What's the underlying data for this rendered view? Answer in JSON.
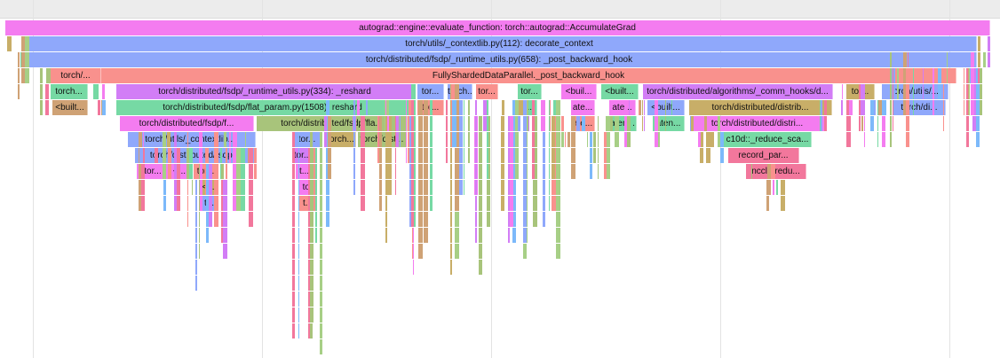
{
  "colors": {
    "pink": "#f47cf0",
    "blue": "#8fa8fb",
    "salmon": "#f9918d",
    "purple": "#d27df6",
    "green": "#76d9a4",
    "tan": "#cfa275",
    "olive": "#a8c47b",
    "lightblue": "#7cb9fa",
    "mustard": "#c8ae68",
    "rose": "#f2779c",
    "sage": "#a7cf86"
  },
  "frames": [
    {
      "label": "autograd::engine::evaluate_function: torch::autograd::AccumulateGrad",
      "color": "pink"
    },
    {
      "label": "torch/utils/_contextlib.py(112): decorate_context",
      "color": "blue"
    },
    {
      "label": "torch/distributed/fsdp/_runtime_utils.py(658): _post_backward_hook",
      "color": "blue"
    },
    {
      "label": "torch/...",
      "color": "salmon"
    },
    {
      "label": "FullyShardedDataParallel._post_backward_hook",
      "color": "salmon"
    },
    {
      "label": "torch...",
      "color": "green"
    },
    {
      "label": "torch/distributed/fsdp/_runtime_utils.py(334): _reshard",
      "color": "purple"
    },
    {
      "label": "tor...",
      "color": "blue"
    },
    {
      "label": "torch...",
      "color": "blue"
    },
    {
      "label": "tor...",
      "color": "salmon"
    },
    {
      "label": "tor...",
      "color": "green"
    },
    {
      "label": "<buil...",
      "color": "pink"
    },
    {
      "label": "<built...",
      "color": "green"
    },
    {
      "label": "torch/distributed/algorithms/_comm_hooks/d...",
      "color": "purple"
    },
    {
      "label": "tor...",
      "color": "mustard"
    },
    {
      "label": "torch/utils/...",
      "color": "blue"
    },
    {
      "label": "<built...",
      "color": "tan"
    },
    {
      "label": "torch/distributed/fsdp/flat_param.py(1508): reshard",
      "color": "green"
    },
    {
      "label": "tor...",
      "color": "salmon"
    },
    {
      "label": "t...",
      "color": "green"
    },
    {
      "label": "ate...",
      "color": "pink"
    },
    {
      "label": "ate...",
      "color": "pink"
    },
    {
      "label": "<built...",
      "color": "blue"
    },
    {
      "label": "torch/distributed/distrib...",
      "color": "mustard"
    },
    {
      "label": "torch/di...",
      "color": "blue"
    },
    {
      "label": "torch/distributed/fsdp/f...",
      "color": "pink"
    },
    {
      "label": "torch/distributed/fsdp/fla...",
      "color": "olive"
    },
    {
      "label": "ate...",
      "color": "salmon"
    },
    {
      "label": "aten...",
      "color": "green"
    },
    {
      "label": "aten...",
      "color": "green"
    },
    {
      "label": "torch/distributed/distri...",
      "color": "pink"
    },
    {
      "label": "torch/utils/_contextlib....",
      "color": "blue"
    },
    {
      "label": "tor...",
      "color": "blue"
    },
    {
      "label": "torch...",
      "color": "mustard"
    },
    {
      "label": "torch/dist...",
      "color": "olive"
    },
    {
      "label": "c10d::_reduce_sca...",
      "color": "green"
    },
    {
      "label": "torch/distributed/fsdp...",
      "color": "blue"
    },
    {
      "label": "tor...",
      "color": "purple"
    },
    {
      "label": "record_par...",
      "color": "rose"
    },
    {
      "label": "tor...",
      "color": "pink"
    },
    {
      "label": "<...",
      "color": "pink"
    },
    {
      "label": "tor...",
      "color": "salmon"
    },
    {
      "label": "t...",
      "color": "pink"
    },
    {
      "label": "nccl:_redu...",
      "color": "rose"
    },
    {
      "label": "<...",
      "color": "mustard"
    },
    {
      "label": "tor",
      "color": "pink"
    },
    {
      "label": "t...",
      "color": "blue"
    },
    {
      "label": "t...",
      "color": "salmon"
    }
  ],
  "slivers": [
    {
      "color": "pink"
    },
    {
      "color": "blue"
    },
    {
      "color": "salmon"
    },
    {
      "color": "purple"
    },
    {
      "color": "green"
    },
    {
      "color": "tan"
    },
    {
      "color": "olive"
    },
    {
      "color": "lightblue"
    },
    {
      "color": "mustard"
    },
    {
      "color": "rose"
    },
    {
      "color": "sage"
    }
  ]
}
